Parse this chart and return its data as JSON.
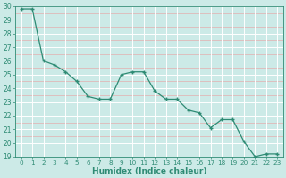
{
  "x": [
    0,
    1,
    2,
    3,
    4,
    5,
    6,
    7,
    8,
    9,
    10,
    11,
    12,
    13,
    14,
    15,
    16,
    17,
    18,
    19,
    20,
    21,
    22,
    23
  ],
  "y": [
    29.8,
    29.8,
    26.0,
    25.7,
    25.2,
    24.5,
    23.4,
    23.2,
    23.2,
    25.0,
    25.2,
    25.2,
    23.8,
    23.2,
    23.2,
    22.4,
    22.2,
    21.1,
    21.7,
    21.7,
    20.1,
    19.0,
    19.2,
    19.2
  ],
  "xlabel": "Humidex (Indice chaleur)",
  "xlim": [
    -0.5,
    23.5
  ],
  "ylim": [
    19,
    30
  ],
  "yticks": [
    19,
    20,
    21,
    22,
    23,
    24,
    25,
    26,
    27,
    28,
    29,
    30
  ],
  "xticks": [
    0,
    1,
    2,
    3,
    4,
    5,
    6,
    7,
    8,
    9,
    10,
    11,
    12,
    13,
    14,
    15,
    16,
    17,
    18,
    19,
    20,
    21,
    22,
    23
  ],
  "line_color": "#2e8b74",
  "marker_color": "#2e8b74",
  "bg_color": "#cceae7",
  "grid_minor_color": "#e0b8b8",
  "grid_major_color": "#ffffff",
  "tick_color": "#2e8b74",
  "label_color": "#2e8b74",
  "xlabel_color": "#2e8b74"
}
